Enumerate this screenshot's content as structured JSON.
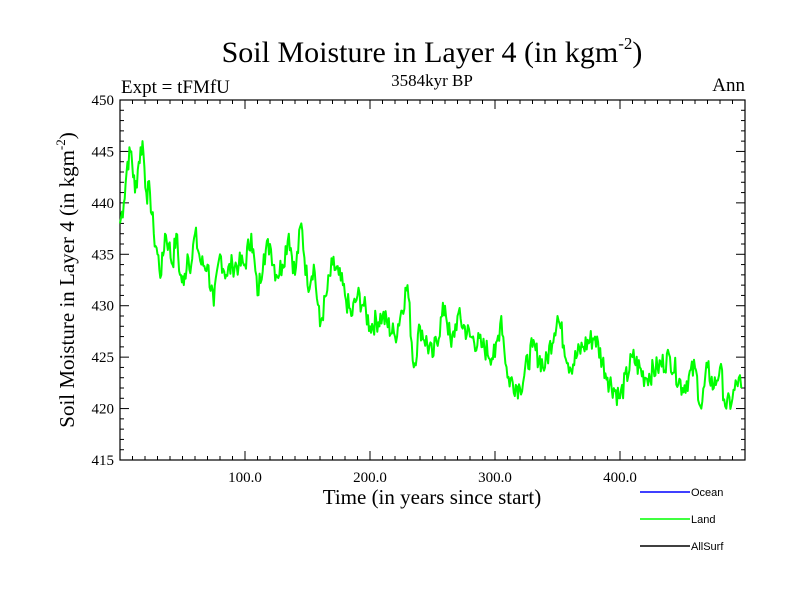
{
  "chart_data": {
    "type": "line",
    "title": "Soil Moisture in Layer 4 (in kgm",
    "title_sup": "-2",
    "title_close": ")",
    "subtitle": "3584kyr BP",
    "left_label": "Expt = tFMfU",
    "right_label": "Ann",
    "xlabel": "Time (in years since start)",
    "ylabel": "Soil Moisture in Layer 4 (in kgm",
    "ylabel_sup": "-2",
    "ylabel_close": ")",
    "xlim": [
      0,
      500
    ],
    "ylim": [
      415,
      450
    ],
    "x_ticks": [
      100,
      200,
      300,
      400
    ],
    "x_tick_labels": [
      "100.0",
      "200.0",
      "300.0",
      "400.0"
    ],
    "y_ticks": [
      415,
      420,
      425,
      430,
      435,
      440,
      445,
      450
    ],
    "y_tick_labels": [
      "415",
      "420",
      "425",
      "430",
      "435",
      "440",
      "445",
      "450"
    ],
    "legend": [
      {
        "name": "Ocean",
        "color": "#0000ff"
      },
      {
        "name": "Land",
        "color": "#00ff00"
      },
      {
        "name": "AllSurf",
        "color": "#000000"
      }
    ],
    "series": [
      {
        "name": "Land",
        "color": "#00ff00",
        "x": [
          0,
          3,
          6,
          9,
          12,
          15,
          18,
          21,
          24,
          27,
          30,
          33,
          36,
          39,
          42,
          45,
          48,
          51,
          54,
          57,
          60,
          65,
          70,
          75,
          80,
          85,
          90,
          95,
          100,
          105,
          110,
          115,
          120,
          125,
          130,
          135,
          140,
          145,
          150,
          155,
          160,
          165,
          170,
          175,
          180,
          185,
          190,
          195,
          200,
          210,
          220,
          230,
          235,
          240,
          250,
          260,
          265,
          270,
          280,
          290,
          300,
          305,
          310,
          320,
          330,
          340,
          350,
          360,
          370,
          380,
          390,
          400,
          410,
          420,
          430,
          440,
          450,
          460,
          465,
          470,
          475,
          480,
          485,
          490,
          495,
          497
        ],
        "values": [
          438,
          440,
          444,
          445,
          441,
          444,
          446,
          441,
          441,
          437,
          435,
          433,
          437,
          436,
          434,
          437,
          433,
          432,
          435,
          434,
          437,
          434,
          434,
          430,
          435,
          433,
          434,
          434,
          434,
          437,
          431,
          435,
          436,
          433,
          434,
          437,
          433,
          438,
          432,
          434,
          428,
          431,
          434,
          433,
          431,
          429,
          431,
          430,
          428,
          429,
          427,
          432,
          424,
          428,
          425,
          430,
          426,
          429,
          427,
          426,
          425,
          429,
          423,
          422,
          426,
          424,
          429,
          424,
          426,
          427,
          423,
          421,
          425,
          423,
          424,
          425,
          422,
          424,
          420,
          424,
          422,
          424,
          420,
          421,
          423,
          422
        ]
      }
    ]
  }
}
